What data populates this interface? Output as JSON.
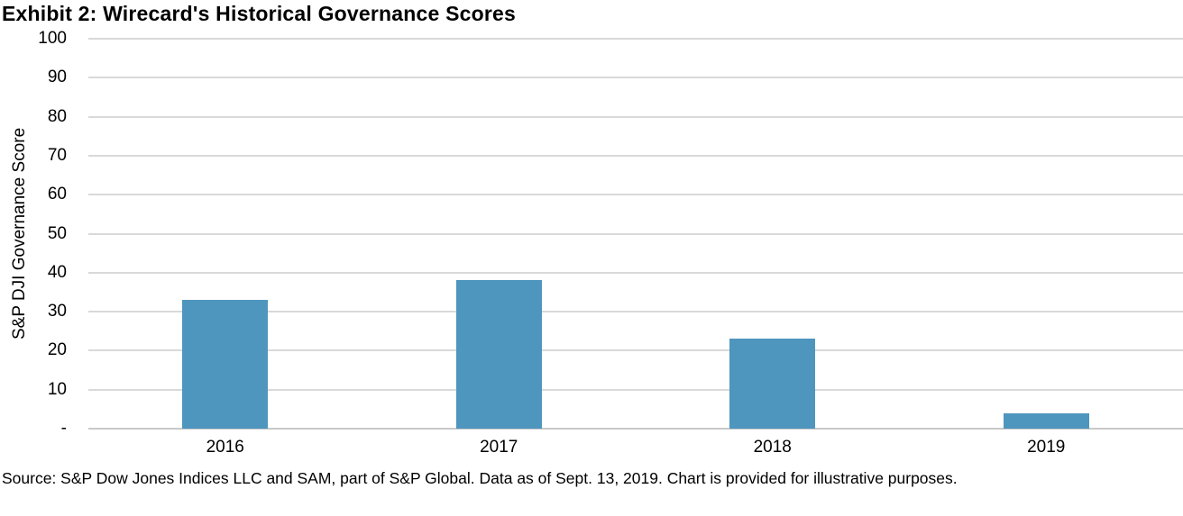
{
  "title": "Exhibit 2: Wirecard's Historical Governance Scores",
  "source_note": "Source: S&P Dow Jones Indices LLC and SAM, part of S&P Global. Data as of Sept. 13, 2019. Chart is provided for illustrative purposes.",
  "chart_data": {
    "type": "bar",
    "title": "Exhibit 2: Wirecard's Historical Governance Scores",
    "categories": [
      "2016",
      "2017",
      "2018",
      "2019"
    ],
    "values": [
      33,
      38,
      23,
      4
    ],
    "xlabel": "",
    "ylabel": "S&P DJI Governance Score",
    "ylim": [
      0,
      100
    ],
    "ytick_interval": 10,
    "ytick_labels": [
      "-",
      "10",
      "20",
      "30",
      "40",
      "50",
      "60",
      "70",
      "80",
      "90",
      "100"
    ],
    "grid": true,
    "legend": false,
    "bar_color": "#4E96BE",
    "gridline_color": "#D9D9D9",
    "axis_line_color": "#C9C9C9",
    "text_color": "#000000"
  }
}
